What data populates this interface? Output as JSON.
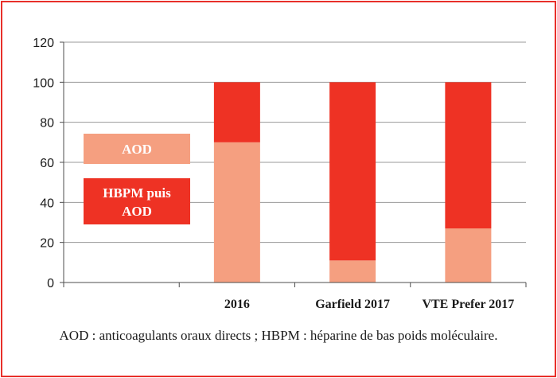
{
  "chart_data": {
    "type": "bar",
    "stacked": true,
    "categories": [
      "",
      "2016",
      "Garfield 2017",
      "VTE Prefer 2017"
    ],
    "series": [
      {
        "name": "AOD",
        "color": "#f59f80",
        "values": [
          null,
          70,
          11,
          27
        ]
      },
      {
        "name": "HBPM puis AOD",
        "color": "#ee3224",
        "values": [
          null,
          30,
          89,
          73
        ]
      }
    ],
    "ylim": [
      0,
      120
    ],
    "yticks": [
      "0",
      "20",
      "40",
      "60",
      "80",
      "100",
      "120"
    ],
    "grid": true,
    "legend_position": "left-inside"
  },
  "legend": [
    {
      "label": "AOD",
      "color": "#f59f80"
    },
    {
      "label_lines": [
        "HBPM puis",
        "AOD"
      ],
      "color": "#ee3224"
    }
  ],
  "caption": "AOD : anticoagulants oraux directs ; HBPM : héparine de bas poids moléculaire.",
  "colors": {
    "frame": "#e8302a",
    "grid": "#9a9a9a",
    "axis": "#4d4d4d"
  }
}
